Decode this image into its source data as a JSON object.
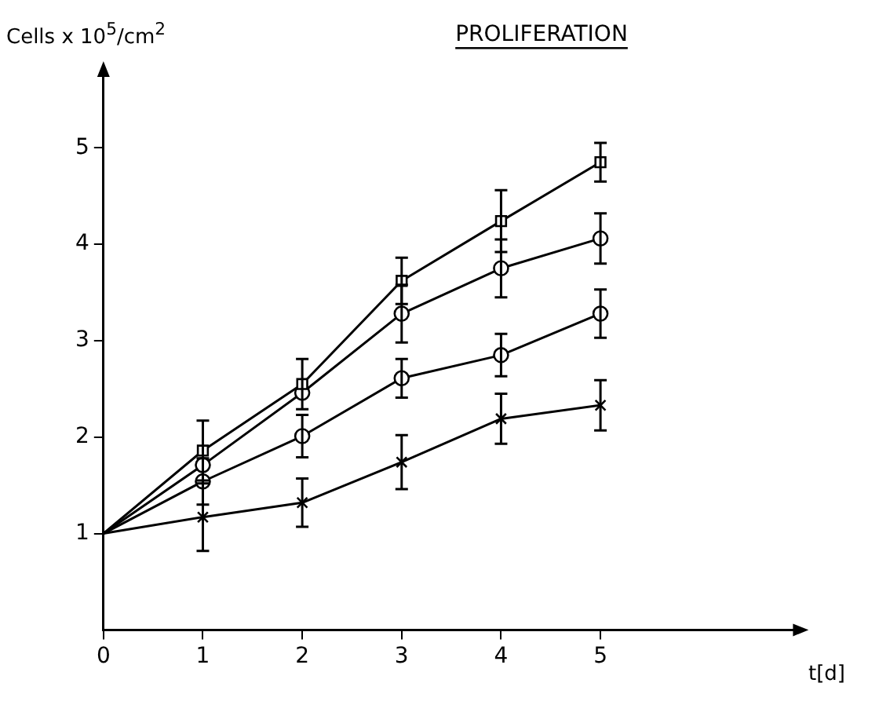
{
  "chart_data": {
    "type": "line",
    "title": "PROLIFERATION",
    "xlabel": "t[d]",
    "ylabel": "Cells x 10$^{5}$/cm$^{2}$",
    "x": [
      0,
      1,
      2,
      3,
      4,
      5
    ],
    "xlim": [
      0,
      7
    ],
    "ylim": [
      0,
      5.8
    ],
    "xticks": [
      0,
      1,
      2,
      3,
      4,
      5
    ],
    "yticks": [
      1,
      2,
      3,
      4,
      5
    ],
    "grid": false,
    "legend": false,
    "line_style": "solid",
    "series": [
      {
        "color": "#000000",
        "marker": "square",
        "values": [
          1,
          1.86,
          2.55,
          3.62,
          4.24,
          4.85
        ],
        "errors": [
          null,
          0.31,
          0.26,
          0.24,
          0.32,
          0.2
        ]
      },
      {
        "color": "#000000",
        "marker": "circle",
        "values": [
          1,
          1.71,
          2.46,
          3.28,
          3.75,
          4.06
        ],
        "errors": [
          null,
          null,
          null,
          0.3,
          0.3,
          0.26
        ]
      },
      {
        "color": "#000000",
        "marker": "circle",
        "values": [
          1,
          1.54,
          2.01,
          2.61,
          2.85,
          3.28
        ],
        "errors": [
          null,
          0.24,
          0.22,
          0.2,
          0.22,
          0.25
        ]
      },
      {
        "color": "#000000",
        "marker": "cross",
        "values": [
          1,
          1.17,
          1.32,
          1.74,
          2.19,
          2.33
        ],
        "errors": [
          null,
          0.35,
          0.25,
          0.28,
          0.26,
          0.26
        ]
      }
    ]
  }
}
